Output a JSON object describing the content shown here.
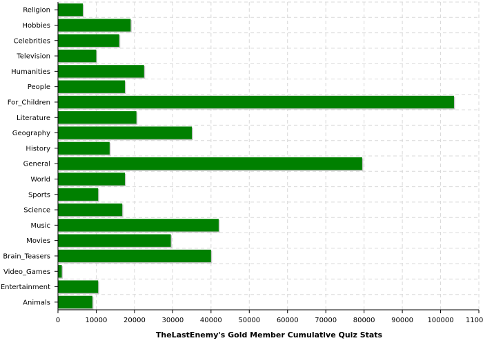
{
  "chart_data": {
    "type": "bar",
    "orientation": "horizontal",
    "xlabel": "TheLastEnemy's Gold Member Cumulative Quiz Stats",
    "ylabel": "",
    "xlim": [
      0,
      110000
    ],
    "x_ticks": [
      0,
      10000,
      20000,
      30000,
      40000,
      50000,
      60000,
      70000,
      80000,
      90000,
      100000,
      110000
    ],
    "x_tick_labels": [
      "0",
      "10000",
      "20000",
      "30000",
      "40000",
      "50000",
      "60000",
      "70000",
      "80000",
      "90000",
      "100000",
      "110000"
    ],
    "grid": true,
    "bar_color": "#008000",
    "categories": [
      "Religion",
      "Hobbies",
      "Celebrities",
      "Television",
      "Humanities",
      "People",
      "For_Children",
      "Literature",
      "Geography",
      "History",
      "General",
      "World",
      "Sports",
      "Science",
      "Music",
      "Movies",
      "Brain_Teasers",
      "Video_Games",
      "Entertainment",
      "Animals"
    ],
    "values": [
      6500,
      19000,
      16000,
      10000,
      22500,
      17500,
      103500,
      20500,
      35000,
      13500,
      79500,
      17500,
      10500,
      16800,
      42000,
      29500,
      40000,
      1000,
      10500,
      9000
    ]
  }
}
